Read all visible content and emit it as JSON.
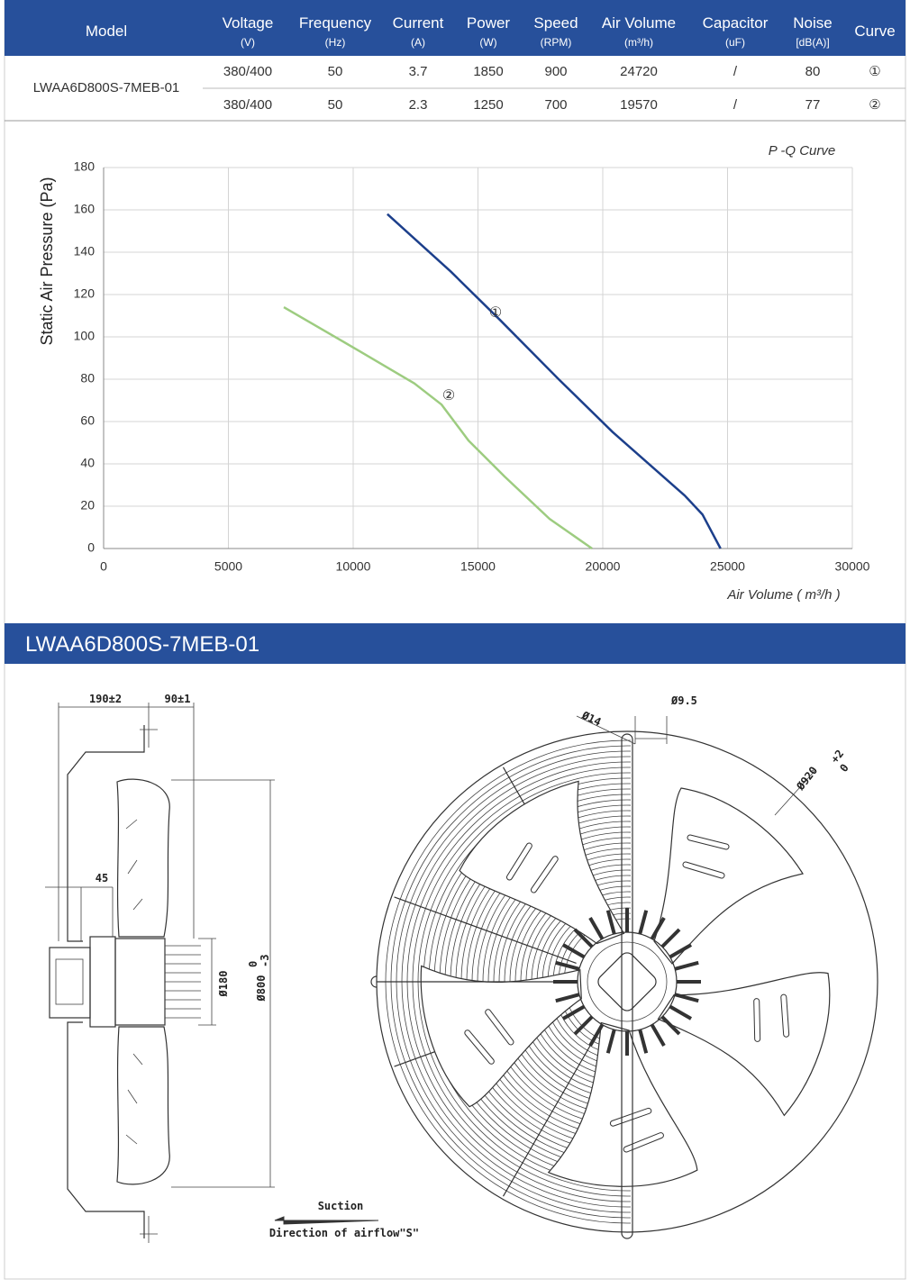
{
  "table": {
    "model": "LWAA6D800S-7MEB-01",
    "headers": [
      {
        "name": "Model"
      },
      {
        "name": "Voltage",
        "unit": "(V)"
      },
      {
        "name": "Frequency",
        "unit": "(Hz)"
      },
      {
        "name": "Current",
        "unit": "(A)"
      },
      {
        "name": "Power",
        "unit": "(W)"
      },
      {
        "name": "Speed",
        "unit": "(RPM)"
      },
      {
        "name": "Air Volume",
        "unit": "(m³/h)"
      },
      {
        "name": "Capacitor",
        "unit": "(uF)"
      },
      {
        "name": "Noise",
        "unit": "[dB(A)]"
      },
      {
        "name": "Curve"
      }
    ],
    "rows": [
      [
        "380/400",
        "50",
        "3.7",
        "1850",
        "900",
        "24720",
        "/",
        "80",
        "①"
      ],
      [
        "380/400",
        "50",
        "2.3",
        "1250",
        "700",
        "19570",
        "/",
        "77",
        "②"
      ]
    ]
  },
  "chart_data": {
    "type": "line",
    "title": "P -Q Curve",
    "x_label": "Air Volume ( m³/h )",
    "y_label": "Static Air Pressure  (Pa)",
    "xlim": [
      0,
      30000
    ],
    "ylim": [
      0,
      180
    ],
    "xticks": [
      0,
      5000,
      10000,
      15000,
      20000,
      25000,
      30000
    ],
    "yticks": [
      0,
      20,
      40,
      60,
      80,
      100,
      120,
      140,
      160,
      180
    ],
    "grid": true,
    "series": [
      {
        "name": "①",
        "color": "#1c3f8b",
        "x": [
          11370,
          13900,
          15880,
          18230,
          20400,
          23290,
          24000,
          24720
        ],
        "values": [
          158,
          131,
          108,
          80,
          55,
          25,
          16,
          0
        ]
      },
      {
        "name": "②",
        "color": "#9dcc80",
        "x": [
          7220,
          10290,
          12450,
          13540,
          14620,
          16070,
          17870,
          19570
        ],
        "values": [
          114,
          93,
          78,
          68,
          51,
          34,
          14,
          0
        ]
      }
    ]
  },
  "drawing": {
    "title": "LWAA6D800S-7MEB-01",
    "dims": {
      "d190": "190±2",
      "d90": "90±1",
      "d45": "45",
      "d180": "Ø180",
      "d800": "Ø800",
      "d800_tol_up": "0",
      "d800_tol_low": "-3",
      "d14": "Ø14",
      "d95": "Ø9.5",
      "d920": "Ø920",
      "d920_tol_up": "+2",
      "d920_tol_low": "0"
    },
    "suction": "Suction",
    "airflow": "Direction of airflow\"S\""
  }
}
